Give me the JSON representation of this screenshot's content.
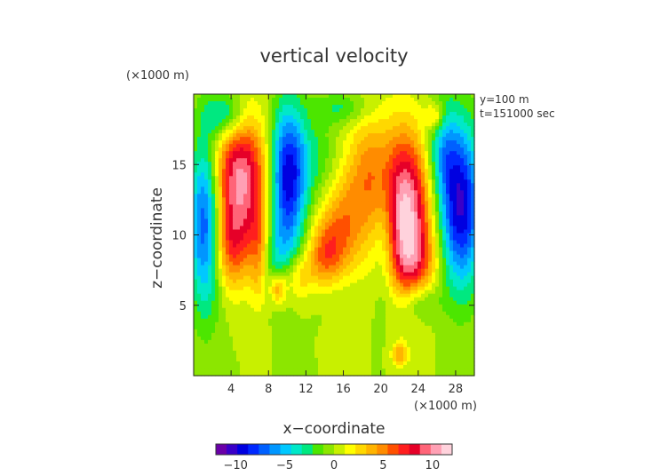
{
  "chart_data": {
    "type": "heatmap",
    "title": "vertical velocity",
    "xlabel": "x−coordinate",
    "ylabel": "z−coordinate",
    "x_unit": "(×1000 m)",
    "y_unit": "(×1000 m)",
    "xlim": [
      0,
      30
    ],
    "ylim": [
      0,
      20
    ],
    "x_ticks": [
      4,
      8,
      12,
      16,
      20,
      24,
      28
    ],
    "y_ticks": [
      5,
      10,
      15
    ],
    "annotations": [
      "y=100 m",
      "t=151000 sec"
    ],
    "colorbar": {
      "min": -12,
      "max": 12,
      "ticks": [
        -10,
        -5,
        0,
        5,
        10
      ],
      "tick_labels": [
        "−10",
        "−5",
        "0",
        "5",
        "10"
      ],
      "colors": [
        "#6a00a8",
        "#3a00c8",
        "#0000e0",
        "#0028ff",
        "#0060ff",
        "#0096ff",
        "#00c8ff",
        "#00e8c8",
        "#00e880",
        "#4ce600",
        "#8ce600",
        "#c8f000",
        "#ffff00",
        "#ffd800",
        "#ffb400",
        "#ff8c00",
        "#ff5000",
        "#ff1e1e",
        "#e60028",
        "#ff6478",
        "#ffa0b4",
        "#ffd2dc"
      ]
    },
    "features": [
      {
        "x": 5,
        "z": 14,
        "sx": 2.2,
        "sz": 3.2,
        "w": 10
      },
      {
        "x": 4,
        "z": 9,
        "sx": 1.6,
        "sz": 2.2,
        "w": 5
      },
      {
        "x": 7,
        "z": 8.5,
        "sx": 0.7,
        "sz": 2.5,
        "w": 4
      },
      {
        "x": 1.3,
        "z": 11,
        "sx": 1.2,
        "sz": 4.2,
        "w": -9
      },
      {
        "x": 10,
        "z": 14,
        "sx": 1.4,
        "sz": 3.6,
        "w": -10
      },
      {
        "x": 9,
        "z": 8,
        "sx": 1.5,
        "sz": 1.8,
        "w": -3
      },
      {
        "x": 3.5,
        "z": 18.5,
        "sx": 1.5,
        "sz": 1.2,
        "w": -5
      },
      {
        "x": 22.5,
        "z": 11.8,
        "sx": 2,
        "sz": 3.8,
        "w": 11.5
      },
      {
        "x": 23.5,
        "z": 8,
        "sx": 1.8,
        "sz": 1.8,
        "w": 4
      },
      {
        "x": 18.5,
        "z": 14.5,
        "sx": 1.7,
        "sz": 3,
        "w": 4
      },
      {
        "x": 16,
        "z": 10.5,
        "sx": 1.6,
        "sz": 2.5,
        "w": 4.5
      },
      {
        "x": 14,
        "z": 8.5,
        "sx": 1.3,
        "sz": 1.8,
        "w": 5
      },
      {
        "x": 11,
        "z": 7,
        "sx": 1.3,
        "sz": 1.3,
        "w": 4
      },
      {
        "x": 9,
        "z": 6.2,
        "sx": 0.6,
        "sz": 0.8,
        "w": 5
      },
      {
        "x": 28.5,
        "z": 12,
        "sx": 1.6,
        "sz": 4,
        "w": -10
      },
      {
        "x": 26.5,
        "z": 16,
        "sx": 1.2,
        "sz": 2.5,
        "w": -4
      },
      {
        "x": 20.5,
        "z": 10,
        "sx": 1.0,
        "sz": 3.5,
        "w": -4
      },
      {
        "x": 13,
        "z": 15.5,
        "sx": 1.7,
        "sz": 2,
        "w": -2
      },
      {
        "x": 24,
        "z": 5.3,
        "sx": 1.5,
        "sz": 1,
        "w": -3
      },
      {
        "x": 14,
        "z": 6,
        "sx": 2,
        "sz": 1.2,
        "w": -1.2
      },
      {
        "x": 25.8,
        "z": 18.4,
        "sx": 0.7,
        "sz": 0.7,
        "w": 4
      },
      {
        "x": 22,
        "z": 1.5,
        "sx": 0.6,
        "sz": 0.6,
        "w": 4
      },
      {
        "x": 16,
        "z": 19,
        "sx": 2,
        "sz": 0.8,
        "w": -2.5
      }
    ]
  }
}
